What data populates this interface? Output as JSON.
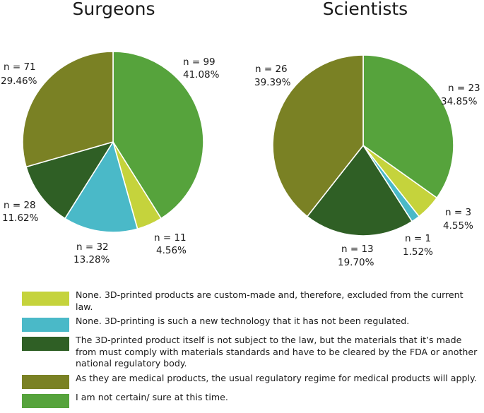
{
  "chart_data": [
    {
      "type": "pie",
      "title": "Surgeons",
      "slices": [
        {
          "category": "not_certain",
          "n_label": "n = 99",
          "pct_label": "41.08%",
          "value": 41.08
        },
        {
          "category": "custom_made",
          "n_label": "n = 11",
          "pct_label": "4.56%",
          "value": 4.56
        },
        {
          "category": "new_technology",
          "n_label": "n = 32",
          "pct_label": "13.28%",
          "value": 13.28
        },
        {
          "category": "materials_regulated",
          "n_label": "n = 28",
          "pct_label": "11.62%",
          "value": 11.62
        },
        {
          "category": "medical_products",
          "n_label": "n = 71",
          "pct_label": "29.46%",
          "value": 29.46
        }
      ]
    },
    {
      "type": "pie",
      "title": "Scientists",
      "slices": [
        {
          "category": "not_certain",
          "n_label": "n = 23",
          "pct_label": "34.85%",
          "value": 34.85
        },
        {
          "category": "custom_made",
          "n_label": "n = 3",
          "pct_label": "4.55%",
          "value": 4.55
        },
        {
          "category": "new_technology",
          "n_label": "n = 1",
          "pct_label": "1.52%",
          "value": 1.52
        },
        {
          "category": "materials_regulated",
          "n_label": "n = 13",
          "pct_label": "19.70%",
          "value": 19.7
        },
        {
          "category": "medical_products",
          "n_label": "n = 26",
          "pct_label": "39.39%",
          "value": 39.39
        }
      ]
    }
  ],
  "colors": {
    "custom_made": "#c5d33c",
    "new_technology": "#4ab9c8",
    "materials_regulated": "#2f5f25",
    "medical_products": "#7a8124",
    "not_certain": "#56a33c"
  },
  "legend": [
    {
      "category": "custom_made",
      "text": "None. 3D-printed products are custom-made and, therefore, excluded from the current law."
    },
    {
      "category": "new_technology",
      "text": "None. 3D-printing is such a new technology that it has not been regulated."
    },
    {
      "category": "materials_regulated",
      "text": "The 3D-printed product itself is not subject to the law, but the materials that it’s made from must comply with materials standards and have to be cleared by the FDA or another national regulatory body."
    },
    {
      "category": "medical_products",
      "text": "As they are medical products, the usual regulatory regime for medical products will apply."
    },
    {
      "category": "not_certain",
      "text": "I am not certain/ sure at this time."
    }
  ]
}
